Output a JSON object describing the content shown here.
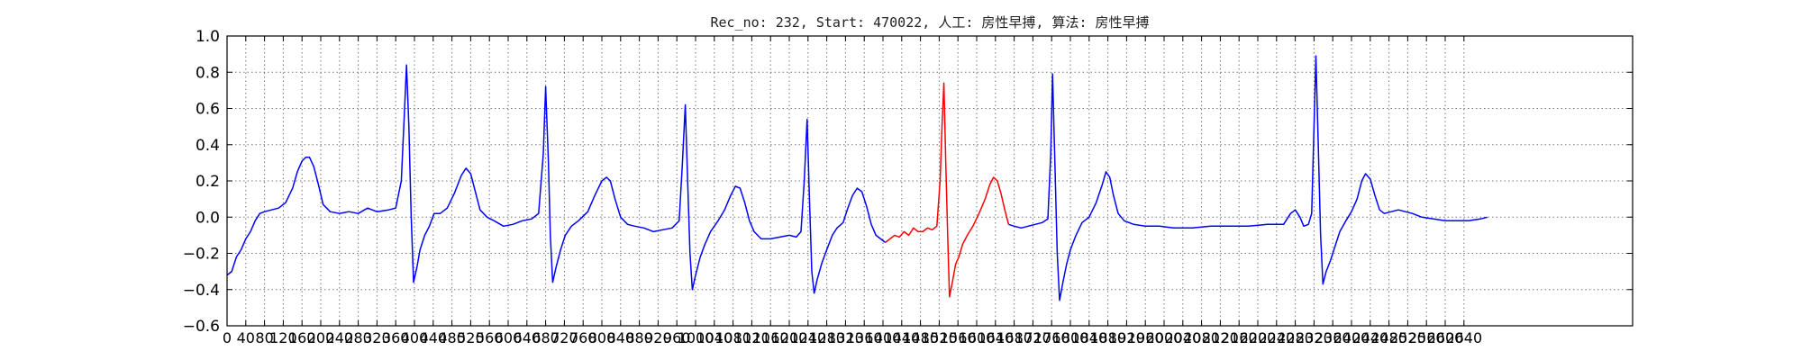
{
  "chart_data": {
    "type": "line",
    "title": "Rec_no: 232, Start: 470022, 人工: 房性早搏, 算法: 房性早搏",
    "xlabel": "",
    "ylabel": "",
    "xlim": [
      0,
      3000
    ],
    "ylim": [
      -0.6,
      1.0
    ],
    "grid": true,
    "grid_style": "dotted",
    "y_ticks": [
      -0.6,
      -0.4,
      -0.2,
      0.0,
      0.2,
      0.4,
      0.6,
      0.8,
      1.0
    ],
    "y_tick_labels": [
      "−0.6",
      "−0.4",
      "−0.2",
      "0.0",
      "0.2",
      "0.4",
      "0.6",
      "0.8",
      "1.0"
    ],
    "x_tick_step": 40,
    "x_tick_max": 2640,
    "x_tick_labels": [
      "0",
      "40",
      "80",
      "120",
      "160",
      "200",
      "240",
      "280",
      "320",
      "360",
      "400",
      "440",
      "480",
      "520",
      "560",
      "600",
      "640",
      "680",
      "720",
      "760",
      "800",
      "840",
      "880",
      "920",
      "960",
      "1000",
      "1040",
      "1080",
      "1120",
      "1160",
      "1200",
      "1240",
      "1280",
      "1320",
      "1360",
      "1400",
      "1440",
      "1480",
      "1520",
      "1560",
      "1600",
      "1640",
      "1680",
      "1720",
      "1760",
      "1800",
      "1840",
      "1880",
      "1920",
      "1960",
      "2000",
      "2040",
      "2080",
      "2120",
      "2160",
      "2200",
      "2240",
      "2280",
      "2320",
      "2360",
      "2400",
      "2440",
      "2480",
      "2520",
      "2560",
      "2600",
      "2640"
    ],
    "series": [
      {
        "color": "#0000ff",
        "points": [
          [
            0,
            -0.32
          ],
          [
            10,
            -0.3
          ],
          [
            20,
            -0.22
          ],
          [
            30,
            -0.18
          ],
          [
            40,
            -0.12
          ],
          [
            50,
            -0.08
          ],
          [
            60,
            -0.02
          ],
          [
            70,
            0.02
          ],
          [
            80,
            0.03
          ],
          [
            95,
            0.04
          ],
          [
            110,
            0.05
          ],
          [
            125,
            0.08
          ],
          [
            140,
            0.16
          ],
          [
            150,
            0.25
          ],
          [
            160,
            0.31
          ],
          [
            168,
            0.33
          ],
          [
            176,
            0.33
          ],
          [
            185,
            0.28
          ],
          [
            195,
            0.18
          ],
          [
            205,
            0.07
          ],
          [
            220,
            0.03
          ],
          [
            240,
            0.02
          ],
          [
            260,
            0.03
          ],
          [
            280,
            0.02
          ],
          [
            300,
            0.05
          ],
          [
            320,
            0.03
          ],
          [
            345,
            0.04
          ],
          [
            360,
            0.05
          ],
          [
            372,
            0.2
          ],
          [
            378,
            0.55
          ],
          [
            383,
            0.84
          ],
          [
            388,
            0.5
          ],
          [
            393,
            0.0
          ],
          [
            398,
            -0.36
          ],
          [
            405,
            -0.28
          ],
          [
            412,
            -0.18
          ],
          [
            422,
            -0.1
          ],
          [
            432,
            -0.05
          ],
          [
            442,
            0.02
          ],
          [
            455,
            0.02
          ],
          [
            470,
            0.05
          ],
          [
            485,
            0.13
          ],
          [
            500,
            0.23
          ],
          [
            510,
            0.27
          ],
          [
            520,
            0.24
          ],
          [
            530,
            0.14
          ],
          [
            540,
            0.04
          ],
          [
            555,
            0.0
          ],
          [
            570,
            -0.02
          ],
          [
            590,
            -0.05
          ],
          [
            610,
            -0.04
          ],
          [
            630,
            -0.02
          ],
          [
            650,
            -0.01
          ],
          [
            665,
            0.02
          ],
          [
            675,
            0.35
          ],
          [
            680,
            0.72
          ],
          [
            686,
            0.3
          ],
          [
            690,
            -0.1
          ],
          [
            695,
            -0.36
          ],
          [
            702,
            -0.28
          ],
          [
            712,
            -0.18
          ],
          [
            722,
            -0.1
          ],
          [
            735,
            -0.05
          ],
          [
            750,
            -0.02
          ],
          [
            770,
            0.03
          ],
          [
            785,
            0.12
          ],
          [
            800,
            0.2
          ],
          [
            810,
            0.22
          ],
          [
            818,
            0.2
          ],
          [
            828,
            0.1
          ],
          [
            840,
            0.0
          ],
          [
            855,
            -0.04
          ],
          [
            870,
            -0.05
          ],
          [
            890,
            -0.06
          ],
          [
            910,
            -0.08
          ],
          [
            930,
            -0.07
          ],
          [
            950,
            -0.06
          ],
          [
            965,
            -0.02
          ],
          [
            972,
            0.3
          ],
          [
            978,
            0.62
          ],
          [
            983,
            0.2
          ],
          [
            988,
            -0.2
          ],
          [
            993,
            -0.4
          ],
          [
            1000,
            -0.32
          ],
          [
            1010,
            -0.22
          ],
          [
            1020,
            -0.15
          ],
          [
            1032,
            -0.08
          ],
          [
            1048,
            -0.02
          ],
          [
            1062,
            0.04
          ],
          [
            1075,
            0.12
          ],
          [
            1085,
            0.17
          ],
          [
            1095,
            0.16
          ],
          [
            1105,
            0.08
          ],
          [
            1115,
            -0.02
          ],
          [
            1125,
            -0.08
          ],
          [
            1140,
            -0.12
          ],
          [
            1160,
            -0.12
          ],
          [
            1180,
            -0.11
          ],
          [
            1200,
            -0.1
          ],
          [
            1215,
            -0.11
          ],
          [
            1225,
            -0.08
          ],
          [
            1232,
            0.2
          ],
          [
            1238,
            0.54
          ],
          [
            1243,
            0.1
          ],
          [
            1248,
            -0.3
          ],
          [
            1253,
            -0.42
          ],
          [
            1260,
            -0.34
          ],
          [
            1270,
            -0.25
          ],
          [
            1280,
            -0.18
          ],
          [
            1292,
            -0.1
          ],
          [
            1302,
            -0.06
          ],
          [
            1315,
            -0.03
          ],
          [
            1325,
            0.05
          ],
          [
            1335,
            0.12
          ],
          [
            1345,
            0.16
          ],
          [
            1355,
            0.14
          ],
          [
            1365,
            0.06
          ],
          [
            1375,
            -0.04
          ],
          [
            1385,
            -0.1
          ],
          [
            1395,
            -0.12
          ],
          [
            1405,
            -0.14
          ]
        ]
      },
      {
        "color": "#ff0000",
        "points": [
          [
            1405,
            -0.14
          ],
          [
            1415,
            -0.12
          ],
          [
            1425,
            -0.1
          ],
          [
            1435,
            -0.11
          ],
          [
            1445,
            -0.08
          ],
          [
            1455,
            -0.1
          ],
          [
            1465,
            -0.06
          ],
          [
            1475,
            -0.08
          ],
          [
            1485,
            -0.08
          ],
          [
            1495,
            -0.06
          ],
          [
            1505,
            -0.07
          ],
          [
            1515,
            -0.05
          ],
          [
            1522,
            0.2
          ],
          [
            1526,
            0.5
          ],
          [
            1530,
            0.74
          ],
          [
            1534,
            0.3
          ],
          [
            1538,
            -0.1
          ],
          [
            1542,
            -0.44
          ],
          [
            1548,
            -0.36
          ],
          [
            1555,
            -0.26
          ],
          [
            1562,
            -0.22
          ],
          [
            1570,
            -0.15
          ],
          [
            1580,
            -0.1
          ],
          [
            1592,
            -0.05
          ],
          [
            1605,
            0.02
          ],
          [
            1618,
            0.1
          ],
          [
            1628,
            0.18
          ],
          [
            1636,
            0.22
          ],
          [
            1644,
            0.2
          ],
          [
            1652,
            0.13
          ],
          [
            1660,
            0.04
          ],
          [
            1668,
            -0.04
          ]
        ]
      },
      {
        "color": "#0000ff",
        "points": [
          [
            1668,
            -0.04
          ],
          [
            1680,
            -0.05
          ],
          [
            1695,
            -0.06
          ],
          [
            1710,
            -0.05
          ],
          [
            1725,
            -0.04
          ],
          [
            1740,
            -0.03
          ],
          [
            1752,
            -0.01
          ],
          [
            1758,
            0.35
          ],
          [
            1762,
            0.79
          ],
          [
            1767,
            0.3
          ],
          [
            1772,
            -0.2
          ],
          [
            1777,
            -0.46
          ],
          [
            1784,
            -0.36
          ],
          [
            1792,
            -0.26
          ],
          [
            1800,
            -0.18
          ],
          [
            1812,
            -0.1
          ],
          [
            1825,
            -0.03
          ],
          [
            1840,
            0.0
          ],
          [
            1855,
            0.08
          ],
          [
            1868,
            0.18
          ],
          [
            1876,
            0.25
          ],
          [
            1884,
            0.22
          ],
          [
            1892,
            0.12
          ],
          [
            1902,
            0.02
          ],
          [
            1915,
            -0.02
          ],
          [
            1935,
            -0.04
          ],
          [
            1960,
            -0.05
          ],
          [
            1990,
            -0.05
          ],
          [
            2020,
            -0.06
          ],
          [
            2060,
            -0.06
          ],
          [
            2100,
            -0.05
          ],
          [
            2140,
            -0.05
          ],
          [
            2180,
            -0.05
          ],
          [
            2220,
            -0.04
          ],
          [
            2255,
            -0.04
          ],
          [
            2270,
            0.02
          ],
          [
            2280,
            0.04
          ],
          [
            2290,
            0.0
          ],
          [
            2298,
            -0.05
          ],
          [
            2308,
            -0.04
          ],
          [
            2315,
            0.02
          ],
          [
            2320,
            0.5
          ],
          [
            2324,
            0.89
          ],
          [
            2329,
            0.4
          ],
          [
            2334,
            -0.1
          ],
          [
            2339,
            -0.37
          ],
          [
            2346,
            -0.3
          ],
          [
            2355,
            -0.24
          ],
          [
            2365,
            -0.16
          ],
          [
            2375,
            -0.08
          ],
          [
            2388,
            -0.02
          ],
          [
            2400,
            0.03
          ],
          [
            2412,
            0.1
          ],
          [
            2422,
            0.2
          ],
          [
            2430,
            0.24
          ],
          [
            2440,
            0.21
          ],
          [
            2450,
            0.12
          ],
          [
            2460,
            0.04
          ],
          [
            2470,
            0.02
          ],
          [
            2485,
            0.03
          ],
          [
            2500,
            0.04
          ],
          [
            2515,
            0.03
          ],
          [
            2530,
            0.02
          ],
          [
            2550,
            0.0
          ],
          [
            2575,
            -0.01
          ],
          [
            2600,
            -0.02
          ],
          [
            2625,
            -0.02
          ],
          [
            2650,
            -0.02
          ],
          [
            2675,
            -0.01
          ],
          [
            2690,
            0.0
          ]
        ]
      }
    ]
  }
}
